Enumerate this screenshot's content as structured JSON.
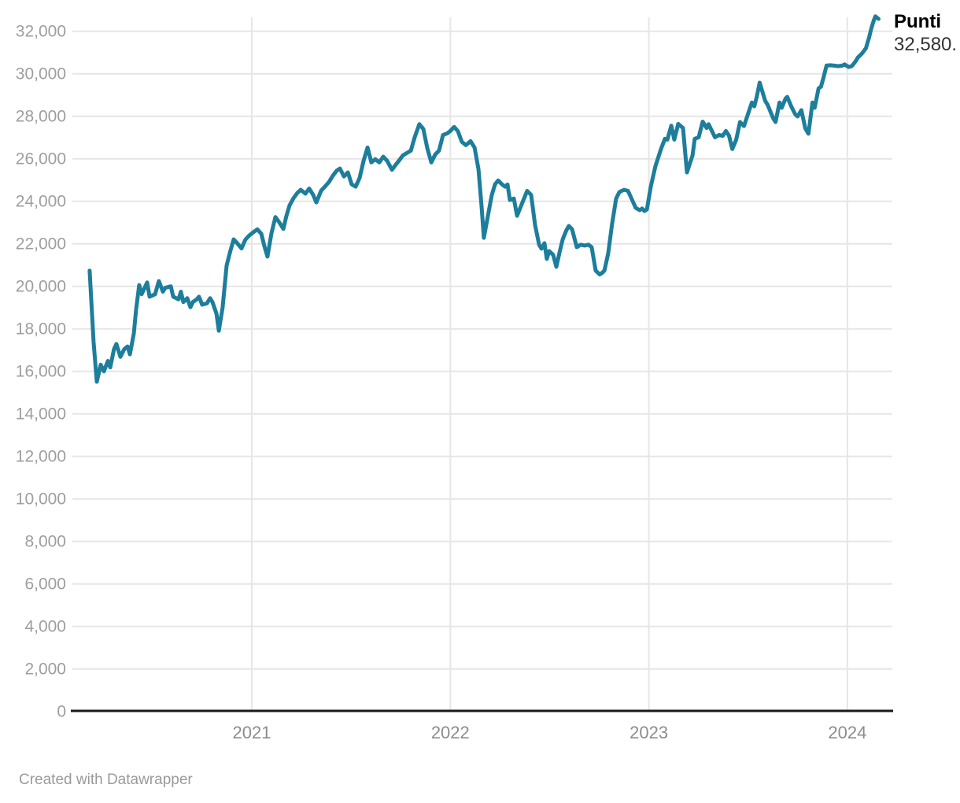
{
  "chart": {
    "value_label": {
      "title": "Punti",
      "value": "32,580."
    },
    "footer_credit": "Created with Datawrapper",
    "colors": {
      "line": "#1d7e9c",
      "grid": "#e6e6e6",
      "axis": "#191919",
      "y_tick_text": "#9e9e9e",
      "x_tick_text": "#8d8d8d",
      "footer_text": "#9a9a9a"
    }
  },
  "chart_data": {
    "type": "line",
    "title": "",
    "xlabel": "",
    "ylabel": "Punti",
    "grid": true,
    "legend_position": "top-right",
    "xlim": [
      2020.05,
      2024.28
    ],
    "ylim": [
      0,
      32600
    ],
    "x_ticks": [
      {
        "t": 2021,
        "label": "2021"
      },
      {
        "t": 2022,
        "label": "2022"
      },
      {
        "t": 2023,
        "label": "2023"
      },
      {
        "t": 2024,
        "label": "2024"
      }
    ],
    "y_ticks": [
      {
        "v": 0,
        "label": "0"
      },
      {
        "v": 2000,
        "label": "2,000"
      },
      {
        "v": 4000,
        "label": "4,000"
      },
      {
        "v": 6000,
        "label": "6,000"
      },
      {
        "v": 8000,
        "label": "8,000"
      },
      {
        "v": 10000,
        "label": "10,000"
      },
      {
        "v": 12000,
        "label": "12,000"
      },
      {
        "v": 14000,
        "label": "14,000"
      },
      {
        "v": 16000,
        "label": "16,000"
      },
      {
        "v": 18000,
        "label": "18,000"
      },
      {
        "v": 20000,
        "label": "20,000"
      },
      {
        "v": 22000,
        "label": "22,000"
      },
      {
        "v": 24000,
        "label": "24,000"
      },
      {
        "v": 26000,
        "label": "26,000"
      },
      {
        "v": 28000,
        "label": "28,000"
      },
      {
        "v": 30000,
        "label": "30,000"
      },
      {
        "v": 32000,
        "label": "32,000"
      }
    ],
    "series": [
      {
        "name": "Punti",
        "last_value": 32580,
        "points": [
          [
            2020.183,
            20740
          ],
          [
            2020.203,
            17400
          ],
          [
            2020.219,
            15510
          ],
          [
            2020.239,
            16310
          ],
          [
            2020.255,
            16000
          ],
          [
            2020.275,
            16490
          ],
          [
            2020.287,
            16190
          ],
          [
            2020.306,
            17050
          ],
          [
            2020.318,
            17290
          ],
          [
            2020.338,
            16680
          ],
          [
            2020.358,
            17050
          ],
          [
            2020.374,
            17170
          ],
          [
            2020.386,
            16800
          ],
          [
            2020.406,
            17790
          ],
          [
            2020.417,
            18890
          ],
          [
            2020.433,
            20060
          ],
          [
            2020.445,
            19630
          ],
          [
            2020.473,
            20180
          ],
          [
            2020.485,
            19510
          ],
          [
            2020.513,
            19630
          ],
          [
            2020.532,
            20250
          ],
          [
            2020.552,
            19750
          ],
          [
            2020.564,
            19930
          ],
          [
            2020.592,
            20000
          ],
          [
            2020.604,
            19510
          ],
          [
            2020.631,
            19390
          ],
          [
            2020.643,
            19750
          ],
          [
            2020.655,
            19260
          ],
          [
            2020.675,
            19440
          ],
          [
            2020.691,
            19020
          ],
          [
            2020.703,
            19260
          ],
          [
            2020.723,
            19390
          ],
          [
            2020.734,
            19510
          ],
          [
            2020.75,
            19140
          ],
          [
            2020.774,
            19200
          ],
          [
            2020.79,
            19440
          ],
          [
            2020.802,
            19260
          ],
          [
            2020.822,
            18710
          ],
          [
            2020.834,
            17910
          ],
          [
            2020.853,
            19000
          ],
          [
            2020.873,
            20980
          ],
          [
            2020.893,
            21700
          ],
          [
            2020.909,
            22210
          ],
          [
            2020.929,
            22000
          ],
          [
            2020.948,
            21780
          ],
          [
            2020.968,
            22200
          ],
          [
            2020.988,
            22400
          ],
          [
            2021.008,
            22550
          ],
          [
            2021.028,
            22680
          ],
          [
            2021.048,
            22470
          ],
          [
            2021.063,
            21900
          ],
          [
            2021.079,
            21400
          ],
          [
            2021.099,
            22500
          ],
          [
            2021.119,
            23260
          ],
          [
            2021.139,
            23000
          ],
          [
            2021.159,
            22700
          ],
          [
            2021.174,
            23300
          ],
          [
            2021.19,
            23800
          ],
          [
            2021.21,
            24150
          ],
          [
            2021.23,
            24400
          ],
          [
            2021.246,
            24540
          ],
          [
            2021.27,
            24360
          ],
          [
            2021.289,
            24600
          ],
          [
            2021.309,
            24300
          ],
          [
            2021.325,
            23950
          ],
          [
            2021.349,
            24500
          ],
          [
            2021.369,
            24700
          ],
          [
            2021.388,
            24900
          ],
          [
            2021.408,
            25200
          ],
          [
            2021.428,
            25450
          ],
          [
            2021.444,
            25540
          ],
          [
            2021.464,
            25170
          ],
          [
            2021.484,
            25360
          ],
          [
            2021.503,
            24800
          ],
          [
            2021.523,
            24690
          ],
          [
            2021.543,
            25100
          ],
          [
            2021.563,
            25900
          ],
          [
            2021.583,
            26530
          ],
          [
            2021.602,
            25830
          ],
          [
            2021.622,
            25980
          ],
          [
            2021.642,
            25830
          ],
          [
            2021.662,
            26100
          ],
          [
            2021.682,
            25900
          ],
          [
            2021.706,
            25480
          ],
          [
            2021.725,
            25720
          ],
          [
            2021.745,
            25960
          ],
          [
            2021.761,
            26160
          ],
          [
            2021.781,
            26270
          ],
          [
            2021.801,
            26380
          ],
          [
            2021.82,
            27000
          ],
          [
            2021.844,
            27630
          ],
          [
            2021.864,
            27400
          ],
          [
            2021.884,
            26500
          ],
          [
            2021.904,
            25830
          ],
          [
            2021.924,
            26200
          ],
          [
            2021.943,
            26380
          ],
          [
            2021.963,
            27120
          ],
          [
            2021.983,
            27190
          ],
          [
            2021.999,
            27300
          ],
          [
            2022.019,
            27500
          ],
          [
            2022.038,
            27300
          ],
          [
            2022.058,
            26800
          ],
          [
            2022.078,
            26640
          ],
          [
            2022.102,
            26830
          ],
          [
            2022.122,
            26530
          ],
          [
            2022.142,
            25500
          ],
          [
            2022.157,
            23800
          ],
          [
            2022.169,
            22280
          ],
          [
            2022.189,
            23300
          ],
          [
            2022.209,
            24300
          ],
          [
            2022.225,
            24800
          ],
          [
            2022.241,
            24980
          ],
          [
            2022.26,
            24800
          ],
          [
            2022.276,
            24690
          ],
          [
            2022.288,
            24790
          ],
          [
            2022.3,
            24060
          ],
          [
            2022.32,
            24130
          ],
          [
            2022.336,
            23320
          ],
          [
            2022.36,
            23870
          ],
          [
            2022.387,
            24490
          ],
          [
            2022.407,
            24300
          ],
          [
            2022.427,
            22880
          ],
          [
            2022.447,
            21960
          ],
          [
            2022.459,
            21770
          ],
          [
            2022.474,
            22030
          ],
          [
            2022.486,
            21290
          ],
          [
            2022.498,
            21660
          ],
          [
            2022.518,
            21480
          ],
          [
            2022.534,
            20920
          ],
          [
            2022.55,
            21600
          ],
          [
            2022.566,
            22210
          ],
          [
            2022.585,
            22650
          ],
          [
            2022.597,
            22840
          ],
          [
            2022.613,
            22690
          ],
          [
            2022.637,
            21840
          ],
          [
            2022.657,
            21960
          ],
          [
            2022.677,
            21920
          ],
          [
            2022.696,
            21960
          ],
          [
            2022.712,
            21840
          ],
          [
            2022.732,
            20740
          ],
          [
            2022.752,
            20560
          ],
          [
            2022.764,
            20630
          ],
          [
            2022.776,
            20740
          ],
          [
            2022.795,
            21550
          ],
          [
            2022.815,
            22950
          ],
          [
            2022.835,
            24130
          ],
          [
            2022.851,
            24430
          ],
          [
            2022.863,
            24490
          ],
          [
            2022.875,
            24540
          ],
          [
            2022.895,
            24490
          ],
          [
            2022.914,
            24100
          ],
          [
            2022.934,
            23690
          ],
          [
            2022.954,
            23580
          ],
          [
            2022.966,
            23660
          ],
          [
            2022.978,
            23540
          ],
          [
            2022.99,
            23620
          ],
          [
            2023.01,
            24700
          ],
          [
            2023.033,
            25650
          ],
          [
            2023.061,
            26460
          ],
          [
            2023.081,
            26940
          ],
          [
            2023.093,
            26900
          ],
          [
            2023.113,
            27560
          ],
          [
            2023.128,
            26900
          ],
          [
            2023.148,
            27640
          ],
          [
            2023.172,
            27450
          ],
          [
            2023.192,
            25360
          ],
          [
            2023.22,
            26160
          ],
          [
            2023.231,
            26940
          ],
          [
            2023.251,
            27010
          ],
          [
            2023.271,
            27750
          ],
          [
            2023.291,
            27450
          ],
          [
            2023.301,
            27630
          ],
          [
            2023.333,
            27010
          ],
          [
            2023.353,
            27120
          ],
          [
            2023.372,
            27080
          ],
          [
            2023.388,
            27310
          ],
          [
            2023.404,
            27080
          ],
          [
            2023.42,
            26460
          ],
          [
            2023.44,
            26900
          ],
          [
            2023.459,
            27730
          ],
          [
            2023.479,
            27540
          ],
          [
            2023.499,
            28100
          ],
          [
            2023.519,
            28650
          ],
          [
            2023.531,
            28470
          ],
          [
            2023.543,
            28900
          ],
          [
            2023.558,
            29580
          ],
          [
            2023.586,
            28730
          ],
          [
            2023.598,
            28540
          ],
          [
            2023.626,
            27910
          ],
          [
            2023.638,
            27730
          ],
          [
            2023.658,
            28650
          ],
          [
            2023.669,
            28400
          ],
          [
            2023.689,
            28840
          ],
          [
            2023.697,
            28910
          ],
          [
            2023.717,
            28470
          ],
          [
            2023.737,
            28100
          ],
          [
            2023.749,
            27990
          ],
          [
            2023.768,
            28290
          ],
          [
            2023.788,
            27430
          ],
          [
            2023.804,
            27180
          ],
          [
            2023.824,
            28650
          ],
          [
            2023.835,
            28400
          ],
          [
            2023.855,
            29320
          ],
          [
            2023.867,
            29390
          ],
          [
            2023.879,
            29800
          ],
          [
            2023.895,
            30390
          ],
          [
            2023.914,
            30400
          ],
          [
            2023.934,
            30380
          ],
          [
            2023.954,
            30360
          ],
          [
            2023.974,
            30380
          ],
          [
            2023.986,
            30440
          ],
          [
            2024.006,
            30320
          ],
          [
            2024.022,
            30360
          ],
          [
            2024.041,
            30580
          ],
          [
            2024.053,
            30770
          ],
          [
            2024.073,
            30950
          ],
          [
            2024.093,
            31200
          ],
          [
            2024.109,
            31700
          ],
          [
            2024.121,
            32150
          ],
          [
            2024.133,
            32520
          ],
          [
            2024.141,
            32700
          ],
          [
            2024.157,
            32580
          ]
        ]
      }
    ]
  }
}
